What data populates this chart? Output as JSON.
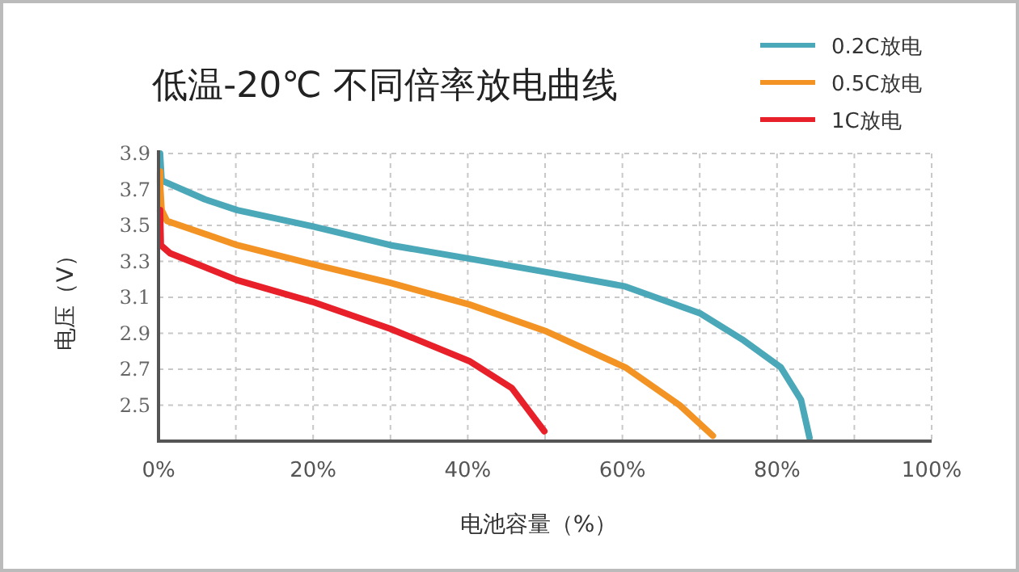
{
  "chart_data": {
    "type": "line",
    "title": "低温-20℃ 不同倍率放电曲线",
    "xlabel": "电池容量（%）",
    "ylabel": "电压（V）",
    "xlim": [
      0,
      100
    ],
    "ylim": [
      2.3,
      3.9
    ],
    "xticks": [
      {
        "value": 0,
        "label": "0%"
      },
      {
        "value": 10,
        "label": null
      },
      {
        "value": 20,
        "label": "20%"
      },
      {
        "value": 30,
        "label": null
      },
      {
        "value": 40,
        "label": "40%"
      },
      {
        "value": 50,
        "label": null
      },
      {
        "value": 60,
        "label": "60%"
      },
      {
        "value": 70,
        "label": null
      },
      {
        "value": 80,
        "label": "80%"
      },
      {
        "value": 90,
        "label": null
      },
      {
        "value": 100,
        "label": "100%"
      }
    ],
    "yticks": [
      2.5,
      2.7,
      2.9,
      3.1,
      3.3,
      3.5,
      3.7,
      3.9
    ],
    "grid": true,
    "legend": "top right",
    "marker": "none",
    "line_style": "solid",
    "series": [
      {
        "name": "0.2C放电",
        "color": "#4aa8b8",
        "x": [
          0.2,
          0.4,
          6,
          10.2,
          19.9,
          30,
          40.2,
          50.2,
          60.4,
          70.1,
          75.7,
          80.5,
          83.1,
          84.2
        ],
        "values": [
          3.9,
          3.75,
          3.645,
          3.585,
          3.495,
          3.39,
          3.315,
          3.24,
          3.16,
          3.01,
          2.86,
          2.71,
          2.53,
          2.32
        ]
      },
      {
        "name": "0.5C放电",
        "color": "#f39323",
        "x": [
          0.2,
          0.2,
          0.4,
          1.1,
          10.2,
          19.9,
          30,
          40.2,
          50.2,
          60.4,
          67.4,
          71.7
        ],
        "values": [
          3.8,
          3.735,
          3.585,
          3.525,
          3.39,
          3.285,
          3.18,
          3.06,
          2.91,
          2.71,
          2.5,
          2.33
        ]
      },
      {
        "name": "1C放电",
        "color": "#e8202a",
        "x": [
          0.2,
          0.3,
          1.5,
          10.2,
          19.9,
          30,
          40.2,
          45.7,
          49.9
        ],
        "values": [
          3.585,
          3.39,
          3.345,
          3.195,
          3.075,
          2.925,
          2.745,
          2.595,
          2.355
        ]
      }
    ]
  }
}
